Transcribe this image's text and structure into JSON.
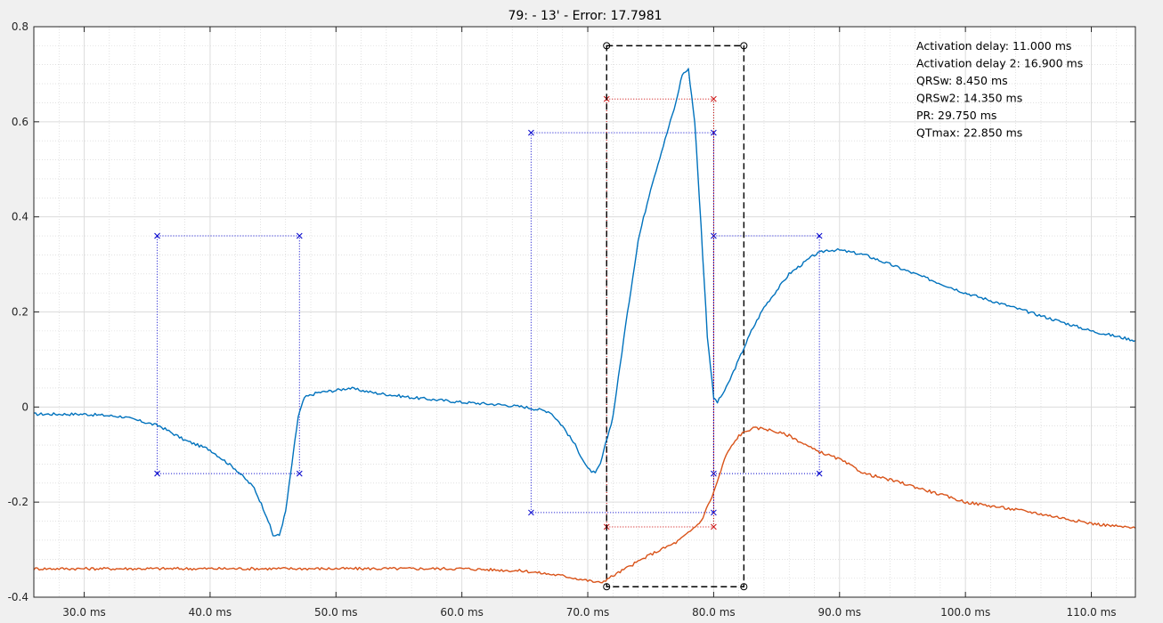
{
  "chart_data": {
    "type": "line",
    "title": "79: - 13'  - Error: 17.7981",
    "xlim": [
      26,
      113.5
    ],
    "ylim": [
      -0.4,
      0.8
    ],
    "x_ticks": [
      {
        "value": 30,
        "label": "30.0 ms"
      },
      {
        "value": 40,
        "label": "40.0 ms"
      },
      {
        "value": 50,
        "label": "50.0 ms"
      },
      {
        "value": 60,
        "label": "60.0 ms"
      },
      {
        "value": 70,
        "label": "70.0 ms"
      },
      {
        "value": 80,
        "label": "80.0 ms"
      },
      {
        "value": 90,
        "label": "90.0 ms"
      },
      {
        "value": 100,
        "label": "100.0 ms"
      },
      {
        "value": 110,
        "label": "110.0 ms"
      }
    ],
    "y_ticks": [
      {
        "value": -0.4,
        "label": "-0.4"
      },
      {
        "value": -0.2,
        "label": "-0.2"
      },
      {
        "value": 0,
        "label": "0"
      },
      {
        "value": 0.2,
        "label": "0.2"
      },
      {
        "value": 0.4,
        "label": "0.4"
      },
      {
        "value": 0.6,
        "label": "0.6"
      },
      {
        "value": 0.8,
        "label": "0.8"
      }
    ],
    "grid": true,
    "minor_grid": true,
    "annotations": [
      "Activation delay: 11.000 ms",
      "Activation delay 2: 16.900 ms",
      "QRSw: 8.450 ms",
      "QRSw2: 14.350 ms",
      "PR: 29.750 ms",
      "QTmax: 22.850 ms"
    ],
    "annotation_position": "top-right",
    "series": [
      {
        "color": "#0072BD",
        "x": [
          26,
          30,
          33,
          36,
          38,
          40,
          42,
          43.5,
          44.5,
          45,
          45.5,
          46,
          46.5,
          47,
          47.5,
          48.5,
          50,
          51,
          53,
          56,
          60,
          63,
          65,
          66,
          67,
          68,
          69,
          70,
          70.6,
          71,
          72,
          73,
          74,
          75,
          76,
          77,
          77.5,
          78,
          78.5,
          79,
          79.5,
          80,
          80.3,
          81,
          82,
          83,
          84,
          86,
          88,
          89,
          90,
          92,
          95,
          100,
          105,
          110,
          113.5
        ],
        "y": [
          -0.015,
          -0.015,
          -0.02,
          -0.04,
          -0.07,
          -0.09,
          -0.13,
          -0.17,
          -0.23,
          -0.27,
          -0.27,
          -0.22,
          -0.12,
          -0.02,
          0.02,
          0.03,
          0.035,
          0.04,
          0.03,
          0.02,
          0.01,
          0.005,
          0.0,
          -0.005,
          -0.01,
          -0.04,
          -0.08,
          -0.13,
          -0.14,
          -0.12,
          -0.02,
          0.17,
          0.35,
          0.46,
          0.55,
          0.64,
          0.7,
          0.71,
          0.6,
          0.38,
          0.15,
          0.02,
          0.01,
          0.04,
          0.1,
          0.16,
          0.21,
          0.28,
          0.32,
          0.33,
          0.33,
          0.32,
          0.29,
          0.24,
          0.2,
          0.16,
          0.14
        ]
      },
      {
        "color": "#D95319",
        "x": [
          26,
          30,
          35,
          40,
          45,
          50,
          55,
          60,
          65,
          68,
          70,
          71,
          72,
          73,
          75,
          77,
          78,
          79,
          80,
          81,
          82,
          83,
          84,
          86,
          88,
          90,
          92,
          95,
          100,
          105,
          110,
          113.5
        ],
        "y": [
          -0.34,
          -0.34,
          -0.34,
          -0.34,
          -0.34,
          -0.34,
          -0.34,
          -0.34,
          -0.345,
          -0.355,
          -0.365,
          -0.37,
          -0.355,
          -0.34,
          -0.31,
          -0.285,
          -0.265,
          -0.24,
          -0.18,
          -0.1,
          -0.06,
          -0.045,
          -0.045,
          -0.06,
          -0.09,
          -0.11,
          -0.14,
          -0.16,
          -0.2,
          -0.22,
          -0.245,
          -0.255
        ]
      }
    ],
    "markers": {
      "blue_boxes": [
        {
          "x1": 35.8,
          "x2": 47.1,
          "y1": 0.36,
          "y2": -0.14
        },
        {
          "x1": 65.5,
          "x2": 80.0,
          "y1": 0.577,
          "y2": -0.222
        },
        {
          "x1": 80.0,
          "x2": 88.4,
          "y1": 0.36,
          "y2": -0.14
        }
      ],
      "red_box": {
        "x1": 71.5,
        "x2": 80.0,
        "y1": 0.648,
        "y2": -0.252
      },
      "black_box": {
        "x1": 71.5,
        "x2": 82.4,
        "y1": 0.76,
        "y2": -0.378
      }
    }
  }
}
